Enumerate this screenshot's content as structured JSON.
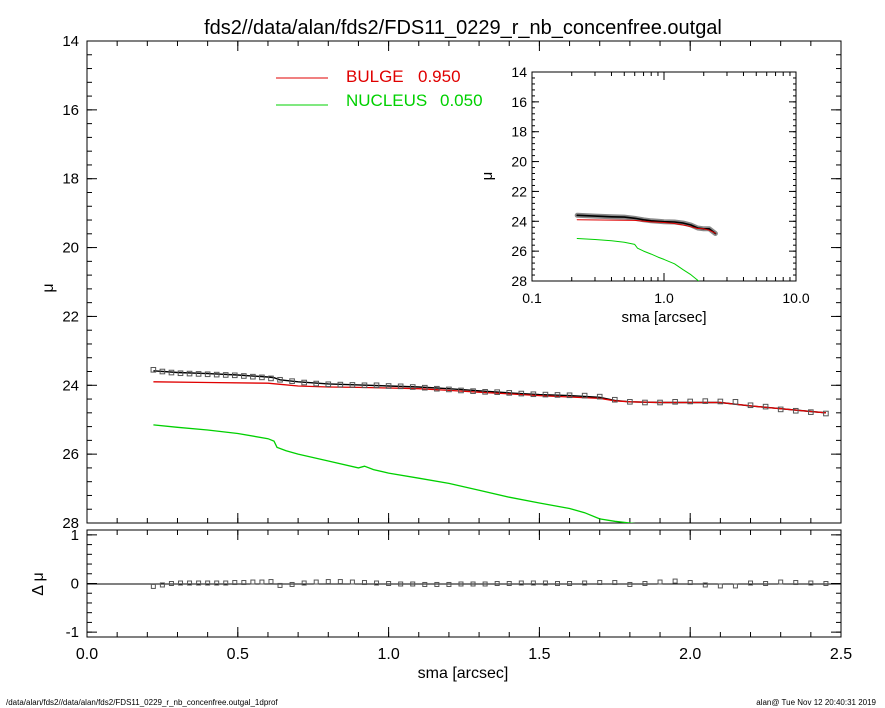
{
  "title": "fds2//data/alan/fds2/FDS11_0229_r_nb_concenfree.outgal",
  "footer_left": "/data/alan/fds2//data/alan/fds2/FDS11_0229_r_nb_concenfree.outgal_1dprof",
  "footer_right": "alan@  Tue Nov 12 20:40:31 2019",
  "colors": {
    "bulge": "#e00000",
    "nucleus": "#00d000",
    "data": "#555555",
    "model": "#000000"
  },
  "chart_data": [
    {
      "id": "main",
      "type": "line",
      "ylabel": "μ",
      "xlim": [
        0.0,
        2.5
      ],
      "ylim": [
        28,
        14
      ],
      "yticks": [
        14,
        16,
        18,
        20,
        22,
        24,
        26,
        28
      ],
      "legend": [
        {
          "label": "BULGE",
          "value": "0.950",
          "color": "#e00000"
        },
        {
          "label": "NUCLEUS",
          "value": "0.050",
          "color": "#00d000"
        }
      ],
      "legend_position": "top-left",
      "series": [
        {
          "name": "data",
          "style": "squares",
          "x": [
            0.22,
            0.25,
            0.28,
            0.31,
            0.34,
            0.37,
            0.4,
            0.43,
            0.46,
            0.49,
            0.52,
            0.55,
            0.58,
            0.61,
            0.64,
            0.68,
            0.72,
            0.76,
            0.8,
            0.84,
            0.88,
            0.92,
            0.96,
            1.0,
            1.04,
            1.08,
            1.12,
            1.16,
            1.2,
            1.24,
            1.28,
            1.32,
            1.36,
            1.4,
            1.44,
            1.48,
            1.52,
            1.56,
            1.6,
            1.65,
            1.7,
            1.75,
            1.8,
            1.85,
            1.9,
            1.95,
            2.0,
            2.05,
            2.1,
            2.15,
            2.2,
            2.25,
            2.3,
            2.35,
            2.4,
            2.45
          ],
          "y": [
            23.55,
            23.6,
            23.63,
            23.65,
            23.66,
            23.67,
            23.68,
            23.69,
            23.7,
            23.71,
            23.73,
            23.75,
            23.77,
            23.8,
            23.84,
            23.88,
            23.92,
            23.95,
            23.97,
            23.98,
            23.99,
            24.0,
            24.0,
            24.02,
            24.03,
            24.05,
            24.07,
            24.1,
            24.12,
            24.15,
            24.17,
            24.19,
            24.2,
            24.22,
            24.24,
            24.26,
            24.27,
            24.28,
            24.29,
            24.3,
            24.33,
            24.42,
            24.48,
            24.5,
            24.5,
            24.48,
            24.47,
            24.46,
            24.47,
            24.48,
            24.58,
            24.62,
            24.7,
            24.74,
            24.78,
            24.82
          ]
        },
        {
          "name": "model",
          "style": "line",
          "x": [
            0.22,
            0.3,
            0.4,
            0.5,
            0.6,
            0.62,
            0.64,
            0.7,
            0.8,
            0.9,
            1.0,
            1.1,
            1.2,
            1.3,
            1.4,
            1.5,
            1.6,
            1.7,
            1.75,
            1.8,
            1.9,
            2.0,
            2.1,
            2.2,
            2.3,
            2.4,
            2.45
          ],
          "y": [
            23.58,
            23.63,
            23.66,
            23.7,
            23.76,
            23.78,
            23.84,
            23.9,
            23.96,
            23.99,
            24.02,
            24.05,
            24.1,
            24.16,
            24.22,
            24.27,
            24.3,
            24.35,
            24.44,
            24.48,
            24.5,
            24.5,
            24.5,
            24.6,
            24.68,
            24.76,
            24.8
          ]
        },
        {
          "name": "BULGE",
          "style": "line",
          "x": [
            0.22,
            0.4,
            0.6,
            0.64,
            0.7,
            0.8,
            0.9,
            1.0,
            1.1,
            1.2,
            1.3,
            1.4,
            1.5,
            1.6,
            1.7,
            1.75,
            1.8,
            1.9,
            2.0,
            2.1,
            2.2,
            2.3,
            2.4,
            2.45
          ],
          "y": [
            23.9,
            23.92,
            23.94,
            23.97,
            24.02,
            24.05,
            24.06,
            24.08,
            24.1,
            24.15,
            24.2,
            24.25,
            24.3,
            24.34,
            24.38,
            24.45,
            24.48,
            24.5,
            24.5,
            24.5,
            24.6,
            24.68,
            24.76,
            24.8
          ]
        },
        {
          "name": "NUCLEUS",
          "style": "line",
          "x": [
            0.22,
            0.3,
            0.4,
            0.5,
            0.6,
            0.62,
            0.63,
            0.66,
            0.7,
            0.8,
            0.9,
            0.92,
            0.95,
            1.0,
            1.1,
            1.2,
            1.3,
            1.4,
            1.5,
            1.6,
            1.65,
            1.7,
            1.75,
            1.8,
            1.85
          ],
          "y": [
            25.15,
            25.22,
            25.3,
            25.4,
            25.55,
            25.62,
            25.8,
            25.9,
            26.0,
            26.2,
            26.4,
            26.35,
            26.45,
            26.55,
            26.7,
            26.85,
            27.05,
            27.25,
            27.42,
            27.58,
            27.7,
            27.88,
            27.95,
            28.0,
            28.05
          ]
        }
      ]
    },
    {
      "id": "residual",
      "type": "scatter",
      "xlabel": "sma [arcsec]",
      "ylabel": "Δ μ",
      "xlim": [
        0.0,
        2.5
      ],
      "ylim": [
        -1.1,
        1.1
      ],
      "xticks": [
        0.0,
        0.5,
        1.0,
        1.5,
        2.0,
        2.5
      ],
      "xticklabels": [
        "0.0",
        "0.5",
        "1.0",
        "1.5",
        "2.0",
        "2.5"
      ],
      "yticks": [
        -1,
        0,
        1
      ],
      "series": [
        {
          "name": "residual",
          "style": "squares",
          "x": [
            0.22,
            0.25,
            0.28,
            0.31,
            0.34,
            0.37,
            0.4,
            0.43,
            0.46,
            0.49,
            0.52,
            0.55,
            0.58,
            0.61,
            0.64,
            0.68,
            0.72,
            0.76,
            0.8,
            0.84,
            0.88,
            0.92,
            0.96,
            1.0,
            1.04,
            1.08,
            1.12,
            1.16,
            1.2,
            1.24,
            1.28,
            1.32,
            1.36,
            1.4,
            1.44,
            1.48,
            1.52,
            1.56,
            1.6,
            1.65,
            1.7,
            1.75,
            1.8,
            1.85,
            1.9,
            1.95,
            2.0,
            2.05,
            2.1,
            2.15,
            2.2,
            2.25,
            2.3,
            2.35,
            2.4,
            2.45
          ],
          "y": [
            -0.06,
            -0.03,
            0.0,
            0.01,
            0.01,
            0.01,
            0.01,
            0.01,
            0.01,
            0.02,
            0.02,
            0.03,
            0.03,
            0.04,
            -0.04,
            -0.02,
            0.01,
            0.03,
            0.04,
            0.04,
            0.03,
            0.02,
            0.01,
            0.0,
            -0.01,
            -0.01,
            -0.02,
            -0.02,
            -0.02,
            -0.01,
            -0.01,
            -0.01,
            0.0,
            0.0,
            0.01,
            0.01,
            0.01,
            0.0,
            0.0,
            0.01,
            0.02,
            0.02,
            -0.02,
            0.0,
            0.03,
            0.05,
            0.02,
            -0.03,
            -0.05,
            -0.05,
            0.01,
            0.0,
            0.03,
            0.02,
            0.01,
            0.0
          ]
        }
      ]
    },
    {
      "id": "inset",
      "type": "line",
      "xlabel": "sma [arcsec]",
      "ylabel": "μ",
      "xscale": "log",
      "xlim": [
        0.1,
        10.0
      ],
      "ylim": [
        28,
        14
      ],
      "xticks": [
        0.1,
        1.0,
        10.0
      ],
      "xticklabels": [
        "0.1",
        "1.0",
        "10.0"
      ],
      "yticks": [
        14,
        16,
        18,
        20,
        22,
        24,
        26,
        28
      ],
      "series": [
        {
          "name": "data",
          "style": "thick",
          "x": [
            0.22,
            0.3,
            0.4,
            0.5,
            0.6,
            0.7,
            0.8,
            0.9,
            1.0,
            1.2,
            1.4,
            1.6,
            1.8,
            2.0,
            2.2,
            2.45
          ],
          "y": [
            23.6,
            23.65,
            23.7,
            23.72,
            23.8,
            23.9,
            23.97,
            24.0,
            24.03,
            24.05,
            24.12,
            24.25,
            24.45,
            24.5,
            24.5,
            24.82
          ]
        },
        {
          "name": "BULGE",
          "style": "line",
          "x": [
            0.22,
            0.4,
            0.6,
            0.8,
            1.0,
            1.2,
            1.5,
            1.8,
            2.0,
            2.2,
            2.45
          ],
          "y": [
            23.9,
            23.92,
            23.94,
            24.04,
            24.08,
            24.15,
            24.3,
            24.48,
            24.5,
            24.6,
            24.8
          ]
        },
        {
          "name": "NUCLEUS",
          "style": "line",
          "x": [
            0.22,
            0.3,
            0.4,
            0.5,
            0.6,
            0.63,
            0.7,
            0.8,
            0.9,
            1.0,
            1.2,
            1.4,
            1.6,
            1.8,
            1.86
          ],
          "y": [
            25.15,
            25.22,
            25.3,
            25.4,
            25.55,
            25.8,
            26.0,
            26.2,
            26.4,
            26.55,
            26.85,
            27.25,
            27.58,
            27.95,
            28.05
          ]
        }
      ]
    }
  ]
}
